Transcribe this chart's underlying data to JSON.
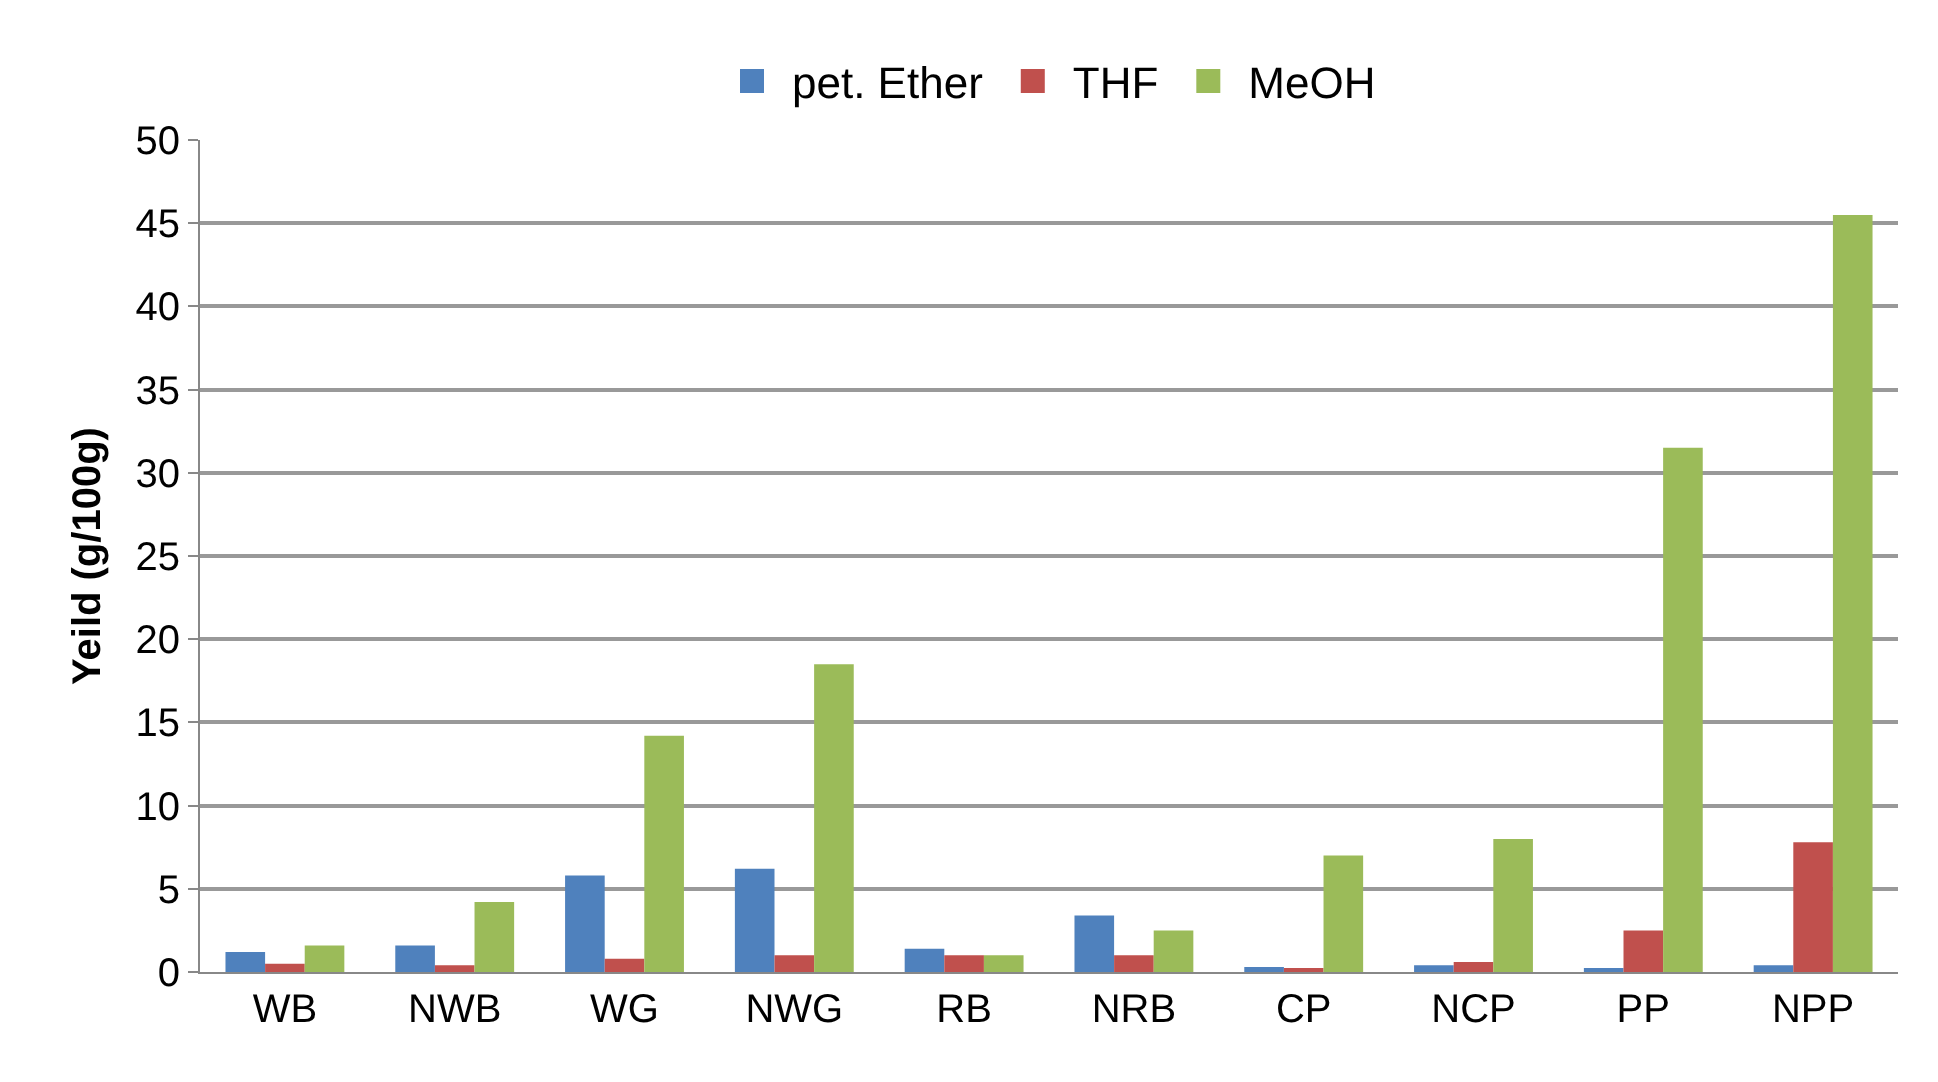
{
  "chart_data": {
    "type": "bar",
    "ylabel": "Yeild (g/100g)",
    "categories": [
      "WB",
      "NWB",
      "WG",
      "NWG",
      "RB",
      "NRB",
      "CP",
      "NCP",
      "PP",
      "NPP"
    ],
    "series": [
      {
        "name": "pet. Ether",
        "color": "#4f81bd",
        "values": [
          1.2,
          1.6,
          5.8,
          6.2,
          1.4,
          3.4,
          0.3,
          0.4,
          0.2,
          0.4
        ]
      },
      {
        "name": "THF",
        "color": "#c0504d",
        "values": [
          0.5,
          0.4,
          0.8,
          1.0,
          1.0,
          1.0,
          0.2,
          0.6,
          2.5,
          7.8
        ]
      },
      {
        "name": "MeOH",
        "color": "#9bbb59",
        "values": [
          1.6,
          4.2,
          14.2,
          18.5,
          1.0,
          2.5,
          7.0,
          8.0,
          31.5,
          45.5
        ]
      }
    ],
    "ylim": [
      0,
      50
    ],
    "yticks": [
      0,
      5,
      10,
      15,
      20,
      25,
      30,
      35,
      40,
      45,
      50
    ],
    "grid": "y",
    "legend": "top"
  }
}
